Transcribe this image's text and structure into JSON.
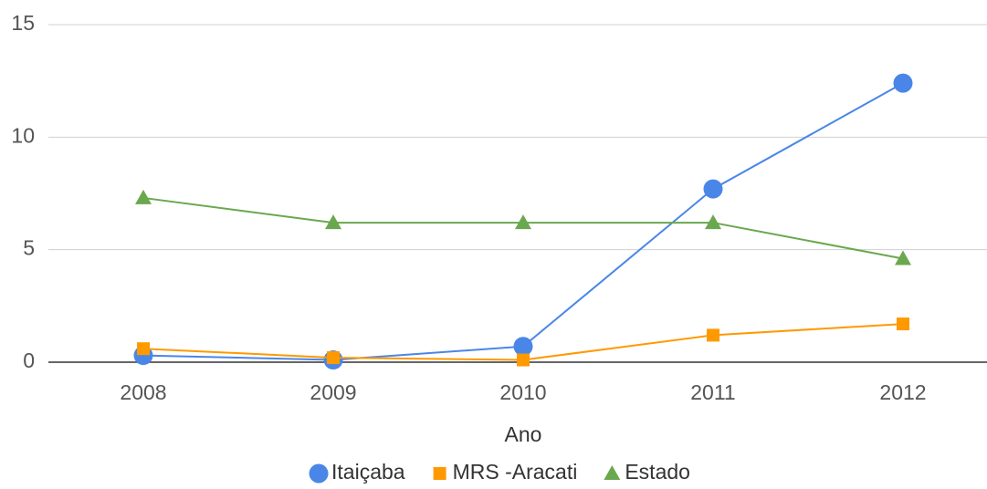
{
  "chart_data": {
    "type": "line",
    "x_label": "Ano",
    "categories": [
      "2008",
      "2009",
      "2010",
      "2011",
      "2012"
    ],
    "series": [
      {
        "name": "Itaiçaba",
        "color": "#4a86e8",
        "marker": "circle",
        "values": [
          0.3,
          0.1,
          0.7,
          7.7,
          12.4
        ]
      },
      {
        "name": "MRS -Aracati",
        "color": "#ff9900",
        "marker": "square",
        "values": [
          0.6,
          0.2,
          0.1,
          1.2,
          1.7
        ]
      },
      {
        "name": "Estado",
        "color": "#6aa84f",
        "marker": "triangle",
        "values": [
          7.3,
          6.2,
          6.2,
          6.2,
          4.6
        ]
      }
    ],
    "ylim": [
      0,
      15
    ],
    "yticks": [
      0,
      5,
      10,
      15
    ],
    "grid": true,
    "legend": "bottom"
  }
}
